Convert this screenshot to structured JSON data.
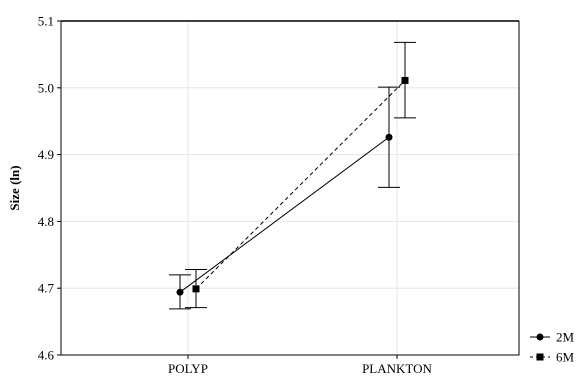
{
  "chart_data": {
    "type": "line",
    "title": "",
    "xlabel": "",
    "ylabel": "Size (ln)",
    "categories": [
      "POLYP",
      "PLANKTON"
    ],
    "ylim": [
      4.6,
      5.1
    ],
    "yticks": [
      "4.6",
      "4.7",
      "4.8",
      "4.9",
      "5.0",
      "5.1"
    ],
    "ytick_values": [
      4.6,
      4.7,
      4.8,
      4.9,
      5.0,
      5.1
    ],
    "reference_line": 5.1,
    "grid": true,
    "legend_position": "bottom-right",
    "series": [
      {
        "name": "2M",
        "marker": "circle",
        "line_style": "solid",
        "values": [
          4.694,
          4.926
        ],
        "error_low": [
          4.669,
          4.851
        ],
        "error_high": [
          4.72,
          5.001
        ]
      },
      {
        "name": "6M",
        "marker": "square",
        "line_style": "dashed",
        "values": [
          4.699,
          5.011
        ],
        "error_low": [
          4.671,
          4.955
        ],
        "error_high": [
          4.728,
          5.068
        ]
      }
    ]
  }
}
